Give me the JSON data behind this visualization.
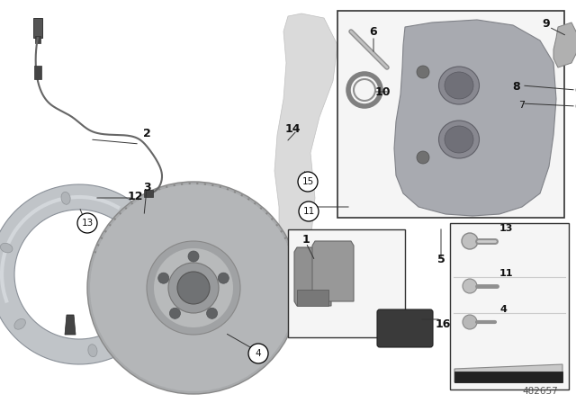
{
  "background_color": "#ffffff",
  "fig_width": 6.4,
  "fig_height": 4.48,
  "dpi": 100,
  "diagram_id": "482657",
  "label_color": "#111111"
}
